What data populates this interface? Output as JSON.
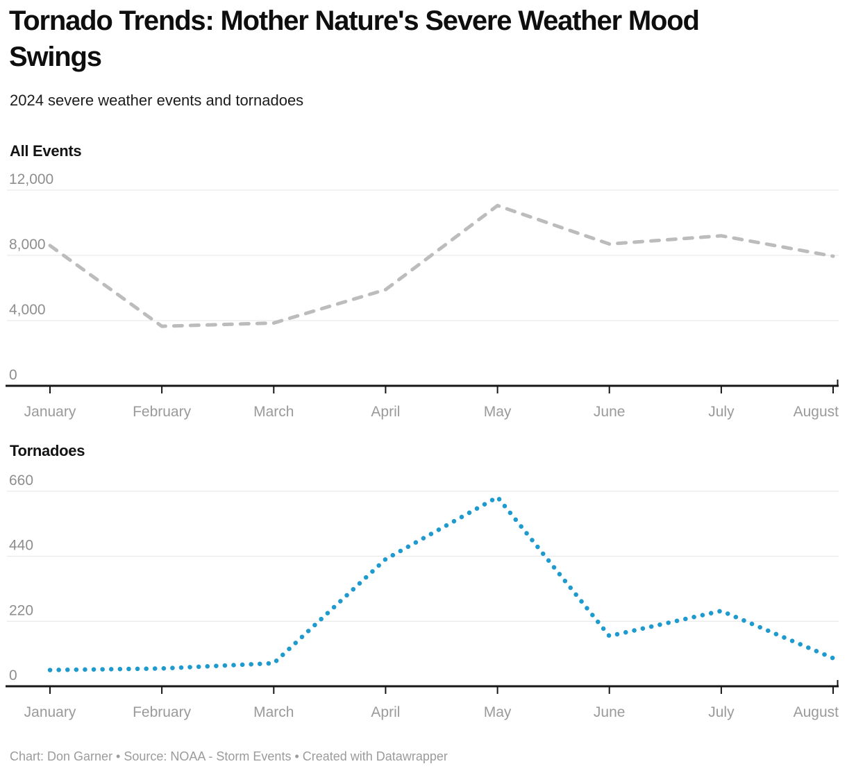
{
  "header": {
    "title": "Tornado Trends: Mother Nature's Severe Weather Mood\nSwings",
    "subtitle": "2024 severe weather events and tornadoes"
  },
  "chart_data": [
    {
      "type": "line",
      "panel_label": "All Events",
      "categories": [
        "January",
        "February",
        "March",
        "April",
        "May",
        "June",
        "July",
        "August"
      ],
      "values": [
        8600,
        3650,
        3850,
        5900,
        11050,
        8700,
        9200,
        7950
      ],
      "y_ticks": [
        {
          "value": 0,
          "label": "0"
        },
        {
          "value": 4000,
          "label": "4,000"
        },
        {
          "value": 8000,
          "label": "8,000"
        },
        {
          "value": 12000,
          "label": "12,000"
        }
      ],
      "ylim": [
        0,
        12000
      ],
      "grid": true,
      "legend": "none",
      "line_style": "dashed",
      "color": "#bcbcbc"
    },
    {
      "type": "line",
      "panel_label": "Tornadoes",
      "categories": [
        "January",
        "February",
        "March",
        "April",
        "May",
        "June",
        "July",
        "August"
      ],
      "values": [
        55,
        60,
        78,
        430,
        640,
        170,
        255,
        95
      ],
      "y_ticks": [
        {
          "value": 0,
          "label": "0"
        },
        {
          "value": 220,
          "label": "220"
        },
        {
          "value": 440,
          "label": "440"
        },
        {
          "value": 660,
          "label": "660"
        }
      ],
      "ylim": [
        0,
        660
      ],
      "grid": true,
      "legend": "none",
      "line_style": "dotted",
      "color": "#1f9ace"
    }
  ],
  "footer": {
    "credit": "Chart: Don Garner • Source: NOAA - Storm Events • Created with Datawrapper"
  }
}
